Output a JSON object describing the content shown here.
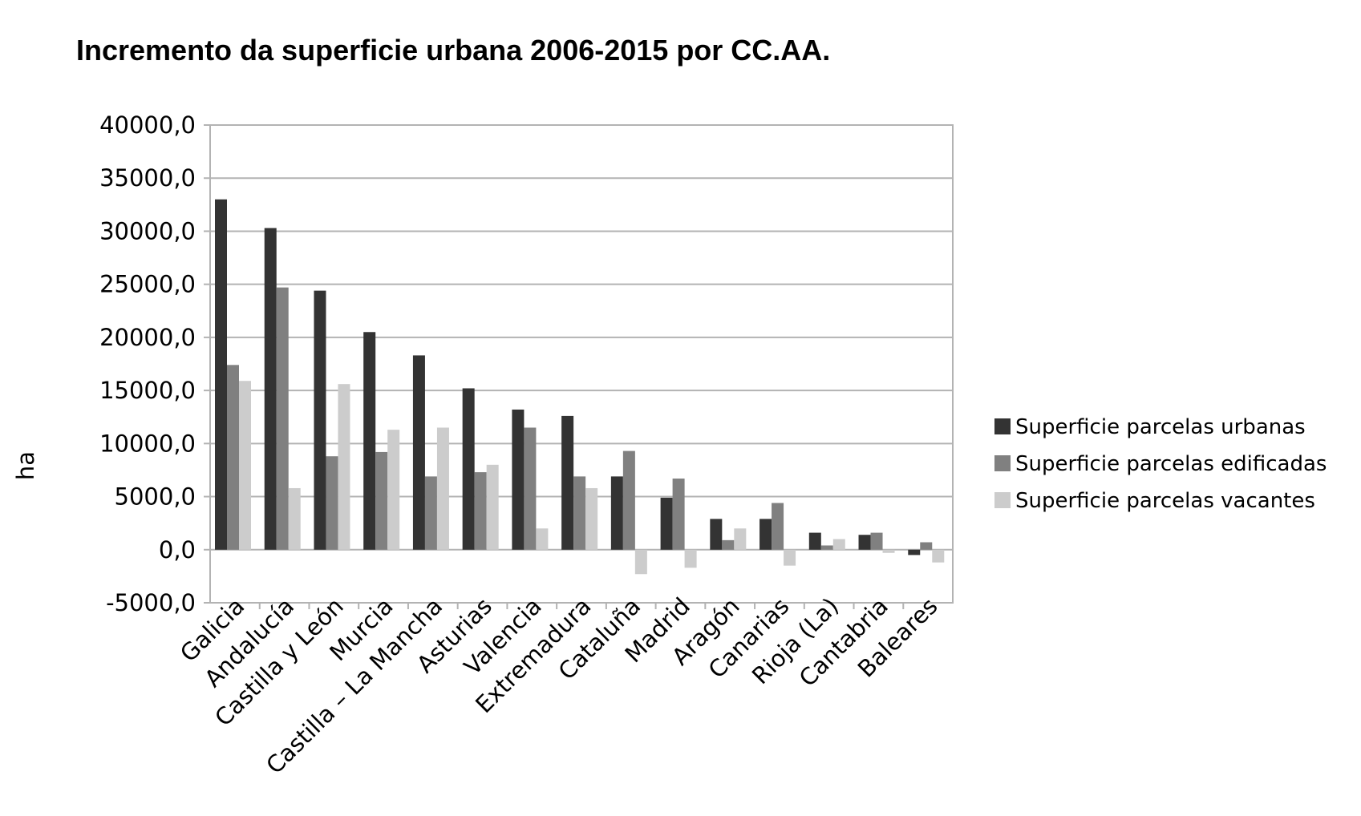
{
  "chart_data": {
    "type": "bar",
    "title": "Incremento da superficie urbana 2006-2015 por CC.AA.",
    "xlabel": "",
    "ylabel": "ha",
    "ylim": [
      -5000,
      40000
    ],
    "yticks": [
      "40000,0",
      "35000,0",
      "30000,0",
      "25000,0",
      "20000,0",
      "15000,0",
      "10000,0",
      "5000,0",
      "0,0",
      "-5000,0"
    ],
    "ytick_values": [
      40000,
      35000,
      30000,
      25000,
      20000,
      15000,
      10000,
      5000,
      0,
      -5000
    ],
    "grid": true,
    "legend_position": "right",
    "categories": [
      "Galicia",
      "Andalucía",
      "Castilla y León",
      "Murcia",
      "Castilla – La Mancha",
      "Asturias",
      "Valencia",
      "Extremadura",
      "Cataluña",
      "Madrid",
      "Aragón",
      "Canarias",
      "Rioja (La)",
      "Cantabria",
      "Baleares"
    ],
    "series": [
      {
        "name": "Superficie parcelas urbanas",
        "color": "#333333",
        "values": [
          33000,
          30300,
          24400,
          20500,
          18300,
          15200,
          13200,
          12600,
          6900,
          4900,
          2900,
          2900,
          1600,
          1400,
          -500
        ]
      },
      {
        "name": "Superficie parcelas edificadas",
        "color": "#808080",
        "values": [
          17400,
          24700,
          8800,
          9200,
          6900,
          7300,
          11500,
          6900,
          9300,
          6700,
          900,
          4400,
          400,
          1600,
          700
        ]
      },
      {
        "name": "Superficie parcelas vacantes",
        "color": "#cccccc",
        "values": [
          15900,
          5800,
          15600,
          11300,
          11500,
          8000,
          2000,
          5800,
          -2300,
          -1700,
          2000,
          -1500,
          1000,
          -300,
          -1200
        ]
      }
    ]
  }
}
